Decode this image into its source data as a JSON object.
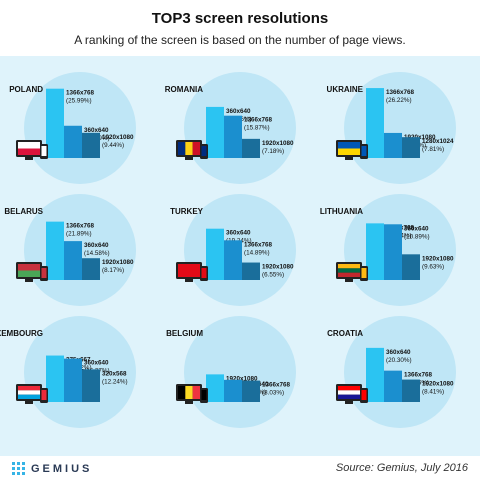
{
  "title": "TOP3 screen resolutions",
  "subtitle": "A ranking of the screen is based on the number of page views.",
  "source": "Source: Gemius, July 2016",
  "logo_text": "GEMIUS",
  "colors": {
    "panel": "#dff3fb",
    "circle": "#bfe6f6",
    "bar1": "#2bc4f2",
    "bar2": "#1b8fcf",
    "bar3": "#1a6e9b"
  },
  "chart_data": [
    {
      "type": "bar",
      "title": "POLAND",
      "categories": [
        "1366x768",
        "360x640",
        "1920x1080"
      ],
      "values": [
        25.99,
        12.09,
        9.44
      ],
      "labels": [
        "(25.99%)",
        "(12.09%)",
        "(9.44%)"
      ],
      "flag": [
        "#ffffff",
        "#dc143c"
      ],
      "flag_dir": "h"
    },
    {
      "type": "bar",
      "title": "ROMANIA",
      "categories": [
        "360x640",
        "1366x768",
        "1920x1080"
      ],
      "values": [
        19.16,
        15.87,
        7.18
      ],
      "labels": [
        "(19.16%)",
        "(15.87%)",
        "(7.18%)"
      ],
      "flag": [
        "#002b7f",
        "#fcd116",
        "#ce1126"
      ],
      "flag_dir": "v"
    },
    {
      "type": "bar",
      "title": "UKRAINE",
      "categories": [
        "1366x768",
        "1920x1080",
        "1280x1024"
      ],
      "values": [
        26.22,
        9.4,
        7.81
      ],
      "labels": [
        "(26.22%)",
        "(9.40%)",
        "(7.81%)"
      ],
      "flag": [
        "#0057b7",
        "#ffd700"
      ],
      "flag_dir": "h"
    },
    {
      "type": "bar",
      "title": "BELARUS",
      "categories": [
        "1366x768",
        "360x640",
        "1920x1080"
      ],
      "values": [
        21.89,
        14.58,
        8.17
      ],
      "labels": [
        "(21.89%)",
        "(14.58%)",
        "(8.17%)"
      ],
      "flag": [
        "#c8313e",
        "#4aa657"
      ],
      "flag_dir": "h"
    },
    {
      "type": "bar",
      "title": "TURKEY",
      "categories": [
        "360x640",
        "1366x768",
        "1920x1080"
      ],
      "values": [
        19.24,
        14.89,
        6.55
      ],
      "labels": [
        "(19.24%)",
        "(14.89%)",
        "(6.55%)"
      ],
      "flag": [
        "#e30a17"
      ],
      "flag_dir": "h"
    },
    {
      "type": "bar",
      "title": "LITHUANIA",
      "categories": [
        "1366x768",
        "360x640",
        "1920x1080"
      ],
      "values": [
        21.24,
        20.89,
        9.63
      ],
      "labels": [
        "(21.24%)",
        "(20.89%)",
        "(9.63%)"
      ],
      "flag": [
        "#fdb913",
        "#006a44",
        "#c1272d"
      ],
      "flag_dir": "h"
    },
    {
      "type": "bar",
      "title": "LUXEMBOURG",
      "categories": [
        "375x667",
        "360x640",
        "320x568"
      ],
      "values": [
        17.42,
        16.27,
        12.24
      ],
      "labels": [
        "(17.42%)",
        "(16.27%)",
        "(12.24%)"
      ],
      "flag": [
        "#ed2939",
        "#ffffff",
        "#00a1de"
      ],
      "flag_dir": "h"
    },
    {
      "type": "bar",
      "title": "BELGIUM",
      "categories": [
        "1920x1080",
        "360x640",
        "1366x768"
      ],
      "values": [
        10.36,
        8.31,
        8.03
      ],
      "labels": [
        "(10.36%)",
        "(8.31%)",
        "(8.03%)"
      ],
      "flag": [
        "#000000",
        "#fdda24",
        "#ef3340"
      ],
      "flag_dir": "v"
    },
    {
      "type": "bar",
      "title": "CROATIA",
      "categories": [
        "360x640",
        "1366x768",
        "1920x1080"
      ],
      "values": [
        20.3,
        11.76,
        8.41
      ],
      "labels": [
        "(20.30%)",
        "(11.76%)",
        "(8.41%)"
      ],
      "flag": [
        "#ff0000",
        "#ffffff",
        "#171796"
      ],
      "flag_dir": "h"
    }
  ]
}
